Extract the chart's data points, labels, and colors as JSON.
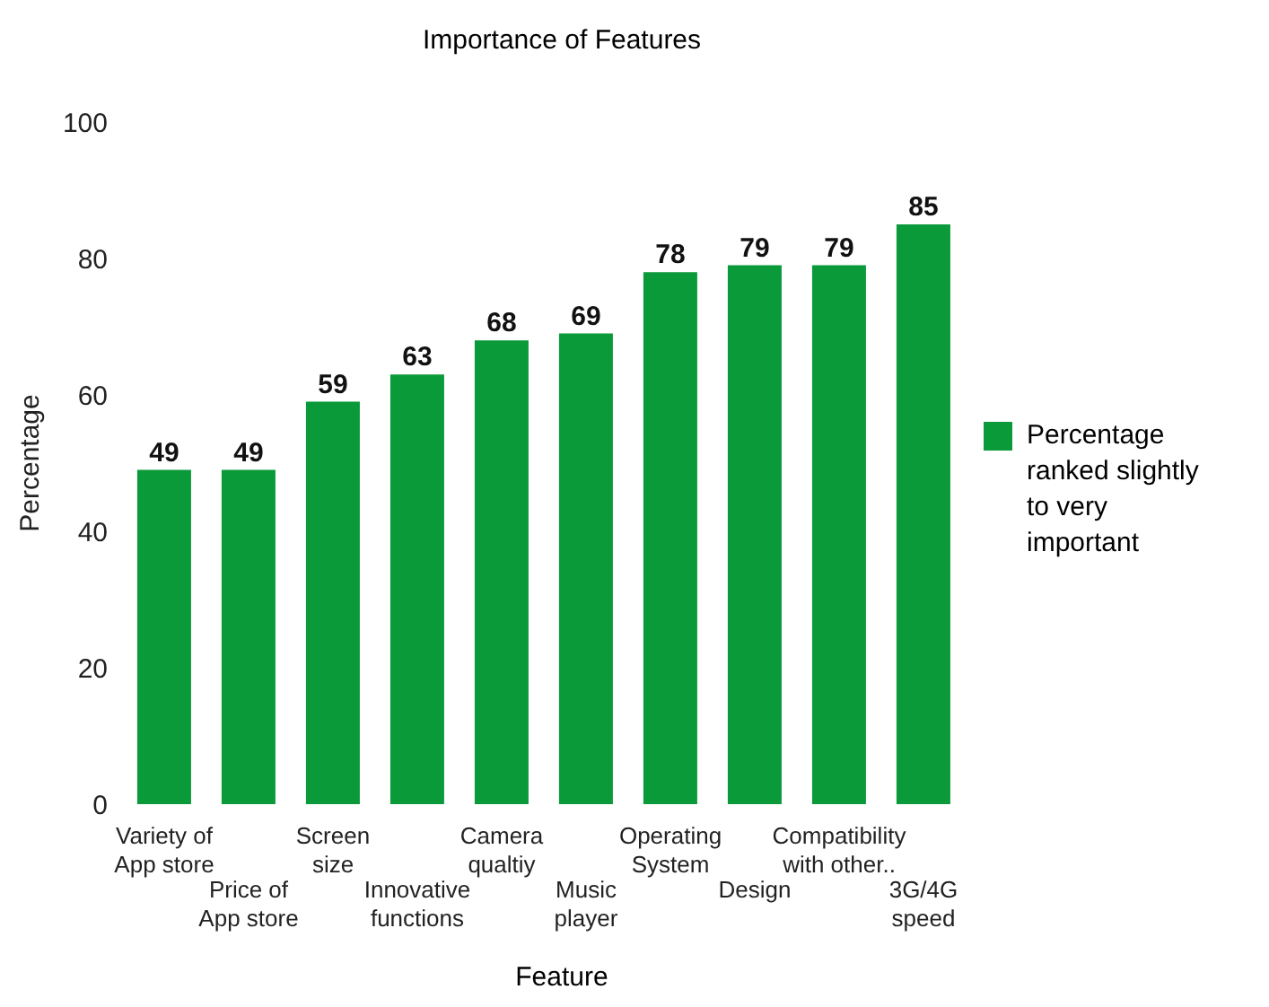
{
  "chart_data": {
    "type": "bar",
    "title": "Importance of Features",
    "xlabel": "Feature",
    "ylabel": "Percentage",
    "categories": [
      "Variety of\nApp store",
      "Price of\nApp store",
      "Screen\nsize",
      "Innovative\nfunctions",
      "Camera\nqualtiy",
      "Music\nplayer",
      "Operating\nSystem",
      "Design",
      "Compatibility\nwith other..",
      "3G/4G\nspeed"
    ],
    "series": [
      {
        "name": "Percentage ranked slightly to very important",
        "color": "#0b9a3a",
        "values": [
          49,
          49,
          59,
          63,
          68,
          69,
          78,
          79,
          79,
          85
        ]
      }
    ],
    "ylim": [
      0,
      100
    ],
    "yticks": [
      0,
      20,
      40,
      60,
      80,
      100
    ],
    "legend": "right",
    "data_labels": true
  }
}
